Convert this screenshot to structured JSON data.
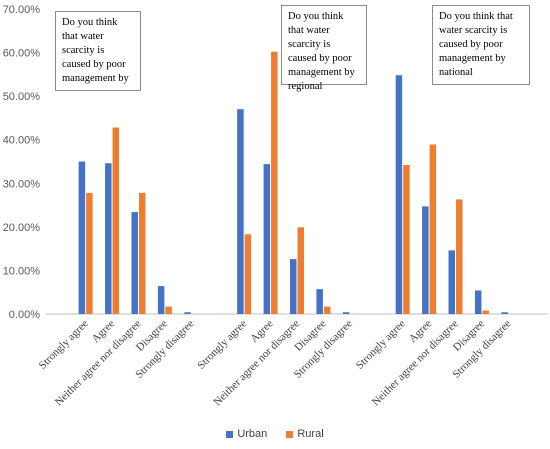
{
  "chart_data": {
    "type": "bar",
    "ylim": [
      0,
      70
    ],
    "y_ticks": [
      "0.00%",
      "10.00%",
      "20.00%",
      "30.00%",
      "40.00%",
      "50.00%",
      "60.00%",
      "70.00%"
    ],
    "grid": false,
    "legend_position": "bottom",
    "categories": [
      "Strongly agree",
      "Agree",
      "Neither agree nor disagree",
      "Disagree",
      "Strongly disagree"
    ],
    "groups": [
      {
        "question": "Do you think that water scarcity is caused by poor management by",
        "series": [
          {
            "name": "Urban",
            "values": [
              35.0,
              34.6,
              23.4,
              6.4,
              0.4
            ]
          },
          {
            "name": "Rural",
            "values": [
              27.8,
              42.8,
              27.8,
              1.7,
              0.0
            ]
          }
        ]
      },
      {
        "question": "Do you think that water scarcity is caused by poor management by regional",
        "series": [
          {
            "name": "Urban",
            "values": [
              47.0,
              34.4,
              12.6,
              5.7,
              0.4
            ]
          },
          {
            "name": "Rural",
            "values": [
              18.3,
              60.2,
              19.9,
              1.7,
              0.0
            ]
          }
        ]
      },
      {
        "question": "Do you think that water scarcity is caused by poor management by national",
        "series": [
          {
            "name": "Urban",
            "values": [
              54.8,
              24.7,
              14.6,
              5.4,
              0.4
            ]
          },
          {
            "name": "Rural",
            "values": [
              34.2,
              38.9,
              26.3,
              0.8,
              0.0
            ]
          }
        ]
      }
    ],
    "legend": [
      {
        "name": "Urban",
        "color": "#4472C4"
      },
      {
        "name": "Rural",
        "color": "#ED7D31"
      }
    ]
  }
}
